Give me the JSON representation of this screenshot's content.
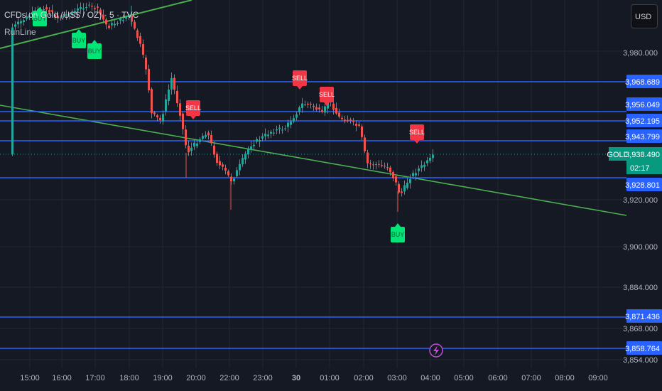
{
  "header": {
    "title": "CFDs on Gold (US$ / OZ) · 5 · TVC",
    "indicator": "RunLine",
    "currency_button": "USD"
  },
  "colors": {
    "background": "#151924",
    "up": "#26a69a",
    "down": "#ef5350",
    "level_line": "#2962ff",
    "trend_line": "#4caf50",
    "buy": "#00e676",
    "sell": "#f23645"
  },
  "price_axis": {
    "labels": [
      "3,980.000",
      "3,920.000",
      "3,900.000",
      "3,884.000",
      "3,868.000",
      "3,854.000"
    ]
  },
  "levels": [
    "3,968.689",
    "3,956.049",
    "3,952.195",
    "3,943.799",
    "3,928.801",
    "3,871.436",
    "3,858.764"
  ],
  "current_price": {
    "symbol": "GOLD",
    "price": "3,938.490",
    "countdown": "02:17"
  },
  "time_axis": {
    "labels": [
      "15:00",
      "16:00",
      "17:00",
      "18:00",
      "19:00",
      "20:00",
      "22:00",
      "23:00",
      "30",
      "01:00",
      "02:00",
      "03:00",
      "04:00",
      "05:00",
      "06:00",
      "07:00",
      "08:00",
      "09:00"
    ]
  },
  "signals": [
    {
      "type": "BUY",
      "label": "BUY"
    },
    {
      "type": "BUY",
      "label": "BUY"
    },
    {
      "type": "BUY",
      "label": "BUY"
    },
    {
      "type": "SELL",
      "label": "SELL"
    },
    {
      "type": "SELL",
      "label": "SELL"
    },
    {
      "type": "SELL",
      "label": "SELL"
    },
    {
      "type": "SELL",
      "label": "SELL"
    },
    {
      "type": "BUY",
      "label": "BUY"
    }
  ],
  "icons": {
    "bottom_marker": "lightning-icon"
  }
}
